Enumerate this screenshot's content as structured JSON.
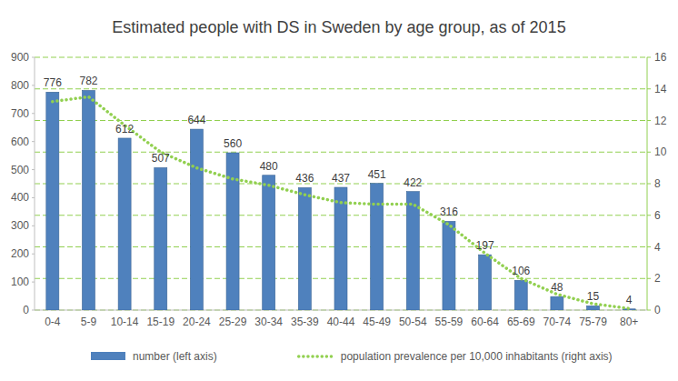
{
  "chart_data": {
    "type": "bar",
    "title": "Estimated people with DS in Sweden by age group, as of 2015",
    "categories": [
      "0-4",
      "5-9",
      "10-14",
      "15-19",
      "20-24",
      "25-29",
      "30-34",
      "35-39",
      "40-44",
      "45-49",
      "50-54",
      "55-59",
      "60-64",
      "65-69",
      "70-74",
      "75-79",
      "80+"
    ],
    "series": [
      {
        "name": "number (left axis)",
        "type": "bar",
        "color": "#4f81bd",
        "values": [
          776,
          782,
          612,
          507,
          644,
          560,
          480,
          436,
          437,
          451,
          422,
          316,
          197,
          106,
          48,
          15,
          4
        ]
      },
      {
        "name": "population prevalence per 10,000 inhabitants (right axis)",
        "type": "line",
        "axis": "y2",
        "color": "#92d050",
        "line_style": "dotted",
        "values": [
          13.2,
          13.5,
          11.7,
          10.0,
          9.0,
          8.3,
          7.9,
          7.3,
          6.8,
          6.7,
          6.7,
          5.4,
          3.6,
          2.0,
          1.0,
          0.4,
          0.1
        ]
      }
    ],
    "ylim": [
      0,
      900
    ],
    "yticks": [
      0,
      100,
      200,
      300,
      400,
      500,
      600,
      700,
      800,
      900
    ],
    "y2lim": [
      0,
      16
    ],
    "y2ticks": [
      0,
      2,
      4,
      6,
      8,
      10,
      12,
      14,
      16
    ],
    "grid": true,
    "data_labels": true,
    "legend": "bottom"
  }
}
